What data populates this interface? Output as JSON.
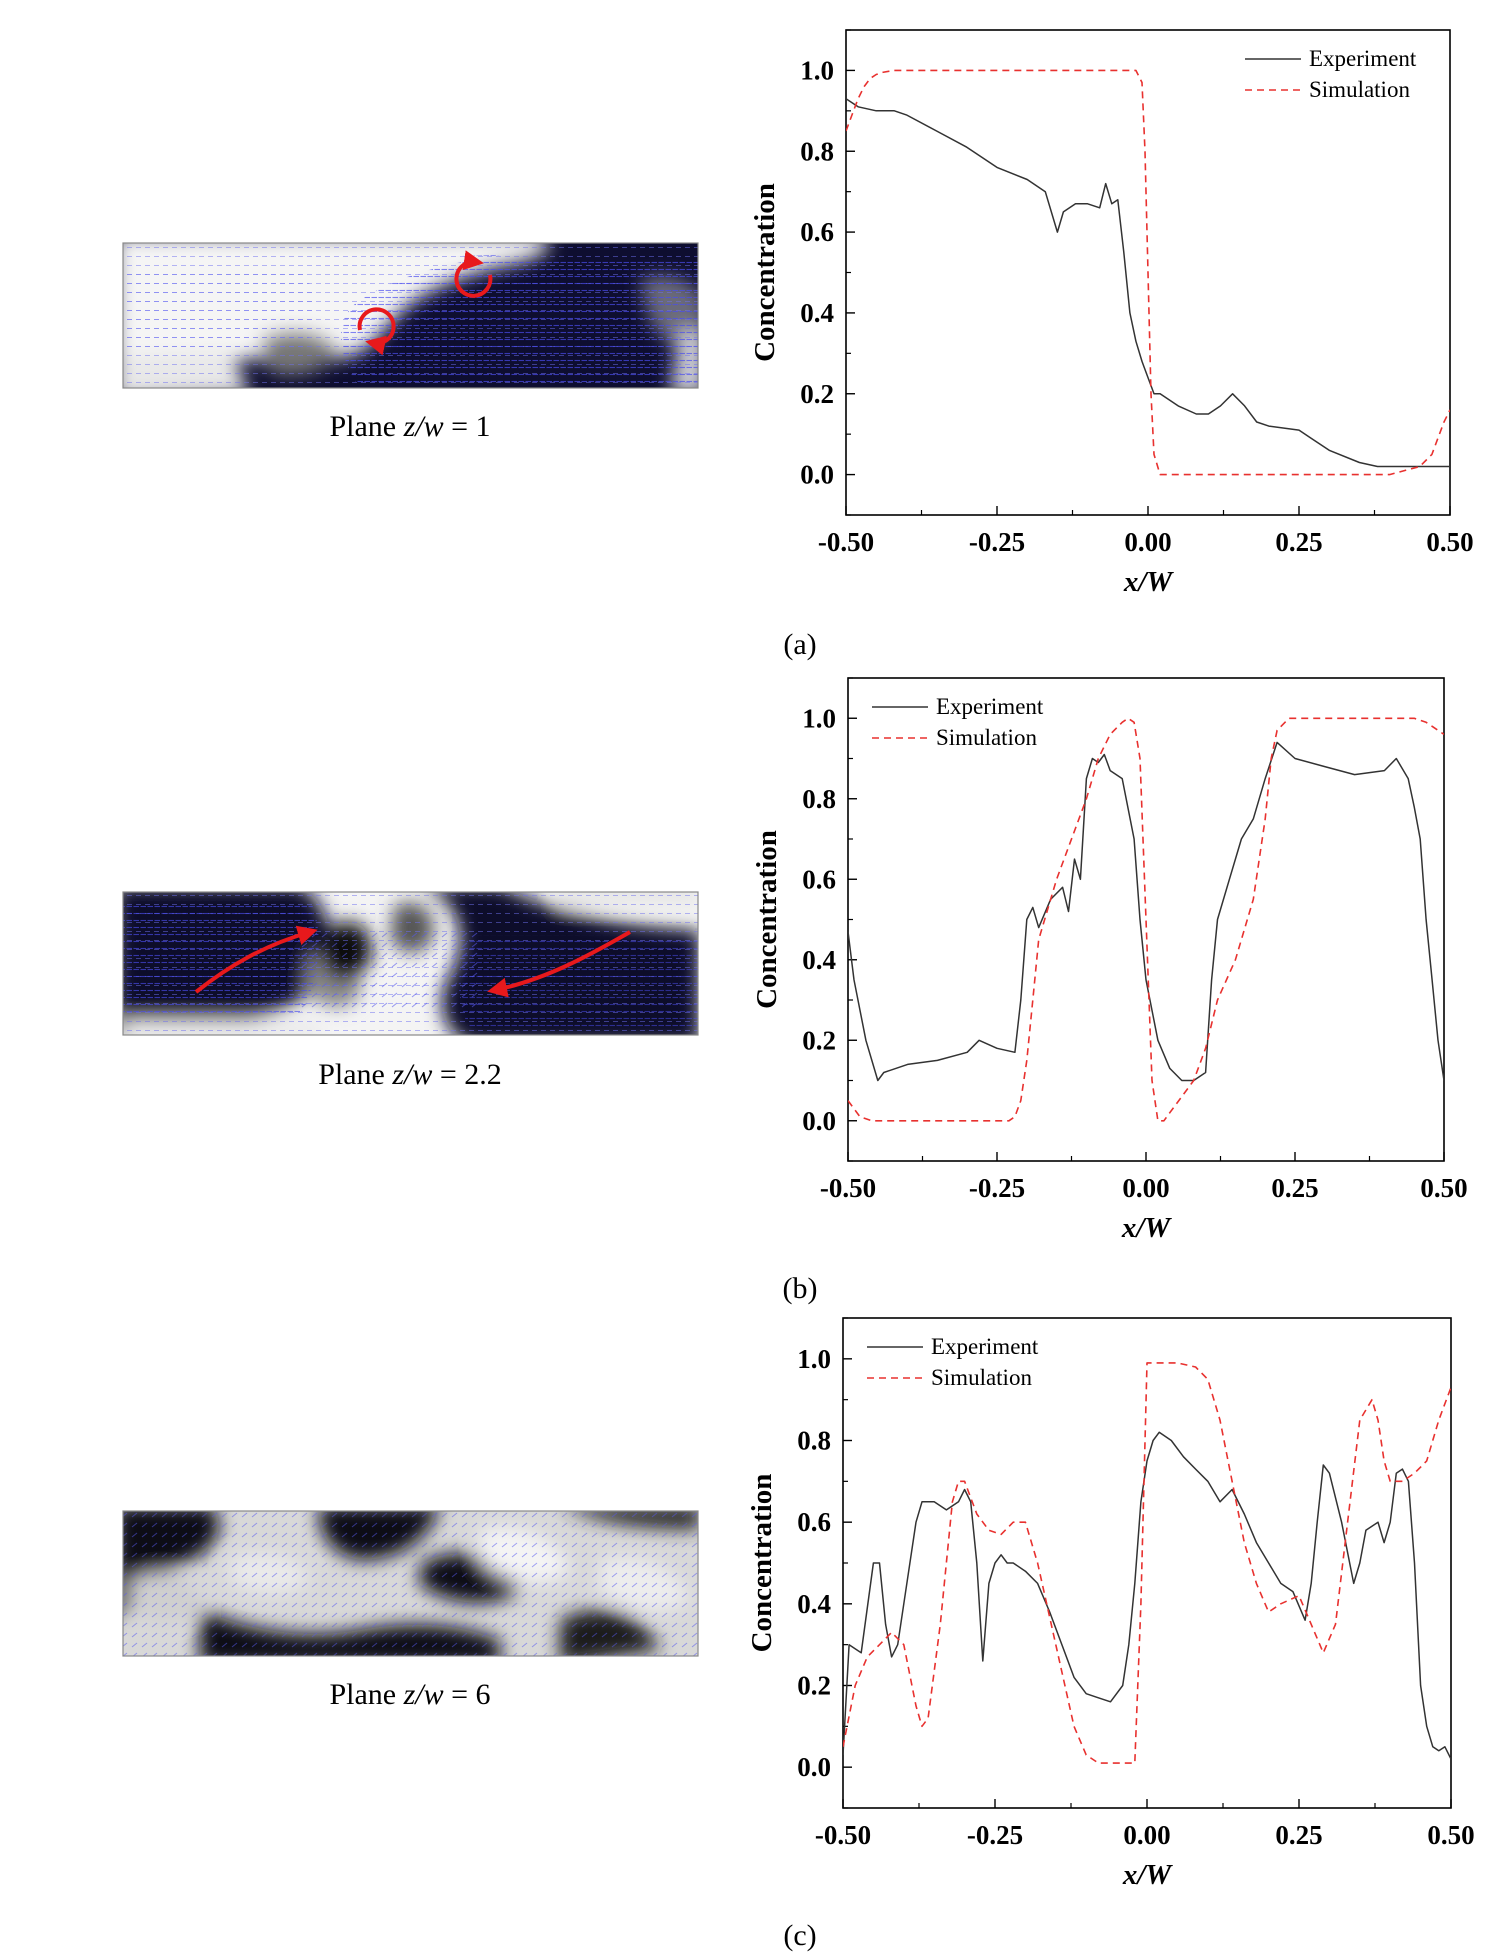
{
  "panels": [
    {
      "letter": "(a)",
      "plane": {
        "prefix": "Plane ",
        "var": "z/w",
        "rest": " = 1"
      },
      "arrows": "vortices",
      "chart_data": {
        "type": "line",
        "xlabel": "x/W",
        "ylabel": "Concentration",
        "xlim": [
          -0.5,
          0.5
        ],
        "ylim": [
          -0.1,
          1.1
        ],
        "xticks": [
          "-0.50",
          "-0.25",
          "0.00",
          "0.25",
          "0.50"
        ],
        "yticks": [
          "0.0",
          "0.2",
          "0.4",
          "0.6",
          "0.8",
          "1.0"
        ],
        "legend_position": "top-right",
        "series": [
          {
            "name": "Experiment",
            "color": "#333333",
            "style": "solid",
            "x": [
              -0.5,
              -0.48,
              -0.45,
              -0.42,
              -0.4,
              -0.35,
              -0.3,
              -0.25,
              -0.2,
              -0.17,
              -0.15,
              -0.14,
              -0.12,
              -0.1,
              -0.08,
              -0.07,
              -0.06,
              -0.05,
              -0.04,
              -0.03,
              -0.02,
              -0.01,
              0.0,
              0.01,
              0.02,
              0.05,
              0.08,
              0.1,
              0.12,
              0.14,
              0.16,
              0.18,
              0.2,
              0.25,
              0.27,
              0.3,
              0.35,
              0.38,
              0.4,
              0.45,
              0.5
            ],
            "y": [
              0.93,
              0.91,
              0.9,
              0.9,
              0.89,
              0.85,
              0.81,
              0.76,
              0.73,
              0.7,
              0.6,
              0.65,
              0.67,
              0.67,
              0.66,
              0.72,
              0.67,
              0.68,
              0.55,
              0.4,
              0.33,
              0.28,
              0.24,
              0.2,
              0.2,
              0.17,
              0.15,
              0.15,
              0.17,
              0.2,
              0.17,
              0.13,
              0.12,
              0.11,
              0.09,
              0.06,
              0.03,
              0.02,
              0.02,
              0.02,
              0.02
            ]
          },
          {
            "name": "Simulation",
            "color": "#e8312f",
            "style": "dashed",
            "x": [
              -0.5,
              -0.49,
              -0.48,
              -0.47,
              -0.46,
              -0.45,
              -0.44,
              -0.42,
              -0.4,
              -0.3,
              -0.2,
              -0.1,
              -0.02,
              -0.01,
              -0.005,
              0.0,
              0.005,
              0.01,
              0.02,
              0.1,
              0.2,
              0.3,
              0.4,
              0.45,
              0.47,
              0.48,
              0.49,
              0.5
            ],
            "y": [
              0.85,
              0.89,
              0.93,
              0.96,
              0.98,
              0.99,
              0.995,
              1.0,
              1.0,
              1.0,
              1.0,
              1.0,
              1.0,
              0.97,
              0.8,
              0.5,
              0.2,
              0.05,
              0.0,
              0.0,
              0.0,
              0.0,
              0.0,
              0.02,
              0.05,
              0.09,
              0.13,
              0.16
            ]
          }
        ]
      }
    },
    {
      "letter": "(b)",
      "plane": {
        "prefix": "Plane ",
        "var": "z/w",
        "rest": " = 2.2"
      },
      "arrows": "flows",
      "chart_data": {
        "type": "line",
        "xlabel": "x/W",
        "ylabel": "Concentration",
        "xlim": [
          -0.5,
          0.5
        ],
        "ylim": [
          -0.1,
          1.1
        ],
        "xticks": [
          "-0.50",
          "-0.25",
          "0.00",
          "0.25",
          "0.50"
        ],
        "yticks": [
          "0.0",
          "0.2",
          "0.4",
          "0.6",
          "0.8",
          "1.0"
        ],
        "legend_position": "top-left",
        "series": [
          {
            "name": "Experiment",
            "color": "#333333",
            "style": "solid",
            "x": [
              -0.5,
              -0.49,
              -0.47,
              -0.45,
              -0.44,
              -0.4,
              -0.35,
              -0.3,
              -0.28,
              -0.25,
              -0.22,
              -0.21,
              -0.2,
              -0.19,
              -0.18,
              -0.16,
              -0.14,
              -0.13,
              -0.12,
              -0.11,
              -0.1,
              -0.09,
              -0.08,
              -0.07,
              -0.06,
              -0.04,
              -0.02,
              -0.01,
              0.0,
              0.02,
              0.04,
              0.06,
              0.08,
              0.1,
              0.11,
              0.12,
              0.14,
              0.16,
              0.18,
              0.2,
              0.22,
              0.25,
              0.3,
              0.35,
              0.4,
              0.42,
              0.44,
              0.45,
              0.46,
              0.47,
              0.48,
              0.49,
              0.5
            ],
            "y": [
              0.47,
              0.35,
              0.2,
              0.1,
              0.12,
              0.14,
              0.15,
              0.17,
              0.2,
              0.18,
              0.17,
              0.3,
              0.5,
              0.53,
              0.48,
              0.55,
              0.58,
              0.52,
              0.65,
              0.6,
              0.85,
              0.9,
              0.89,
              0.91,
              0.87,
              0.85,
              0.7,
              0.5,
              0.35,
              0.2,
              0.13,
              0.1,
              0.1,
              0.12,
              0.35,
              0.5,
              0.6,
              0.7,
              0.75,
              0.85,
              0.94,
              0.9,
              0.88,
              0.86,
              0.87,
              0.9,
              0.85,
              0.78,
              0.7,
              0.5,
              0.35,
              0.2,
              0.1
            ]
          },
          {
            "name": "Simulation",
            "color": "#e8312f",
            "style": "dashed",
            "x": [
              -0.5,
              -0.49,
              -0.48,
              -0.46,
              -0.44,
              -0.4,
              -0.3,
              -0.25,
              -0.23,
              -0.22,
              -0.21,
              -0.2,
              -0.19,
              -0.18,
              -0.15,
              -0.1,
              -0.08,
              -0.06,
              -0.04,
              -0.03,
              -0.02,
              -0.01,
              0.0,
              0.01,
              0.02,
              0.03,
              0.04,
              0.06,
              0.08,
              0.1,
              0.12,
              0.15,
              0.18,
              0.2,
              0.21,
              0.22,
              0.24,
              0.3,
              0.4,
              0.45,
              0.47,
              0.48,
              0.49,
              0.5
            ],
            "y": [
              0.05,
              0.03,
              0.01,
              0.0,
              0.0,
              0.0,
              0.0,
              0.0,
              0.0,
              0.01,
              0.05,
              0.15,
              0.3,
              0.45,
              0.6,
              0.8,
              0.9,
              0.96,
              0.99,
              1.0,
              0.99,
              0.9,
              0.5,
              0.1,
              0.0,
              0.0,
              0.02,
              0.06,
              0.1,
              0.18,
              0.3,
              0.4,
              0.55,
              0.75,
              0.9,
              0.97,
              1.0,
              1.0,
              1.0,
              1.0,
              0.99,
              0.98,
              0.97,
              0.96
            ]
          }
        ]
      }
    },
    {
      "letter": "(c)",
      "plane": {
        "prefix": "Plane ",
        "var": "z/w",
        "rest": " = 6"
      },
      "arrows": "none",
      "chart_data": {
        "type": "line",
        "xlabel": "x/W",
        "ylabel": "Concentration",
        "xlim": [
          -0.5,
          0.5
        ],
        "ylim": [
          -0.1,
          1.1
        ],
        "xticks": [
          "-0.50",
          "-0.25",
          "0.00",
          "0.25",
          "0.50"
        ],
        "yticks": [
          "0.0",
          "0.2",
          "0.4",
          "0.6",
          "0.8",
          "1.0"
        ],
        "legend_position": "top-left",
        "series": [
          {
            "name": "Experiment",
            "color": "#333333",
            "style": "solid",
            "x": [
              -0.5,
              -0.49,
              -0.47,
              -0.45,
              -0.44,
              -0.43,
              -0.42,
              -0.41,
              -0.4,
              -0.38,
              -0.37,
              -0.35,
              -0.33,
              -0.31,
              -0.3,
              -0.29,
              -0.28,
              -0.27,
              -0.26,
              -0.25,
              -0.24,
              -0.23,
              -0.22,
              -0.2,
              -0.18,
              -0.16,
              -0.14,
              -0.12,
              -0.1,
              -0.08,
              -0.06,
              -0.04,
              -0.03,
              -0.02,
              -0.01,
              0.0,
              0.01,
              0.02,
              0.04,
              0.06,
              0.08,
              0.1,
              0.12,
              0.14,
              0.16,
              0.18,
              0.2,
              0.22,
              0.24,
              0.26,
              0.27,
              0.28,
              0.29,
              0.3,
              0.32,
              0.34,
              0.35,
              0.36,
              0.38,
              0.39,
              0.4,
              0.41,
              0.42,
              0.43,
              0.44,
              0.45,
              0.46,
              0.47,
              0.48,
              0.49,
              0.5
            ],
            "y": [
              0.03,
              0.3,
              0.28,
              0.5,
              0.5,
              0.35,
              0.27,
              0.3,
              0.4,
              0.6,
              0.65,
              0.65,
              0.63,
              0.65,
              0.68,
              0.65,
              0.5,
              0.26,
              0.45,
              0.5,
              0.52,
              0.5,
              0.5,
              0.48,
              0.45,
              0.38,
              0.3,
              0.22,
              0.18,
              0.17,
              0.16,
              0.2,
              0.3,
              0.45,
              0.65,
              0.75,
              0.8,
              0.82,
              0.8,
              0.76,
              0.73,
              0.7,
              0.65,
              0.68,
              0.62,
              0.55,
              0.5,
              0.45,
              0.43,
              0.36,
              0.45,
              0.6,
              0.74,
              0.72,
              0.6,
              0.45,
              0.5,
              0.58,
              0.6,
              0.55,
              0.6,
              0.72,
              0.73,
              0.7,
              0.5,
              0.2,
              0.1,
              0.05,
              0.04,
              0.05,
              0.02
            ]
          },
          {
            "name": "Simulation",
            "color": "#e8312f",
            "style": "dashed",
            "x": [
              -0.5,
              -0.48,
              -0.46,
              -0.44,
              -0.42,
              -0.4,
              -0.38,
              -0.37,
              -0.36,
              -0.34,
              -0.32,
              -0.31,
              -0.3,
              -0.28,
              -0.26,
              -0.24,
              -0.22,
              -0.2,
              -0.18,
              -0.15,
              -0.12,
              -0.1,
              -0.08,
              -0.05,
              -0.02,
              -0.01,
              0.0,
              0.02,
              0.05,
              0.08,
              0.1,
              0.12,
              0.14,
              0.16,
              0.18,
              0.2,
              0.22,
              0.25,
              0.27,
              0.29,
              0.31,
              0.33,
              0.35,
              0.37,
              0.38,
              0.39,
              0.4,
              0.42,
              0.44,
              0.46,
              0.48,
              0.5
            ],
            "y": [
              0.05,
              0.2,
              0.27,
              0.3,
              0.33,
              0.3,
              0.15,
              0.1,
              0.12,
              0.35,
              0.65,
              0.7,
              0.7,
              0.62,
              0.58,
              0.57,
              0.6,
              0.6,
              0.5,
              0.3,
              0.1,
              0.03,
              0.01,
              0.01,
              0.01,
              0.4,
              0.99,
              0.99,
              0.99,
              0.98,
              0.95,
              0.85,
              0.7,
              0.55,
              0.45,
              0.38,
              0.4,
              0.42,
              0.35,
              0.28,
              0.35,
              0.6,
              0.85,
              0.9,
              0.85,
              0.75,
              0.7,
              0.7,
              0.72,
              0.75,
              0.85,
              0.93
            ]
          }
        ]
      }
    }
  ]
}
